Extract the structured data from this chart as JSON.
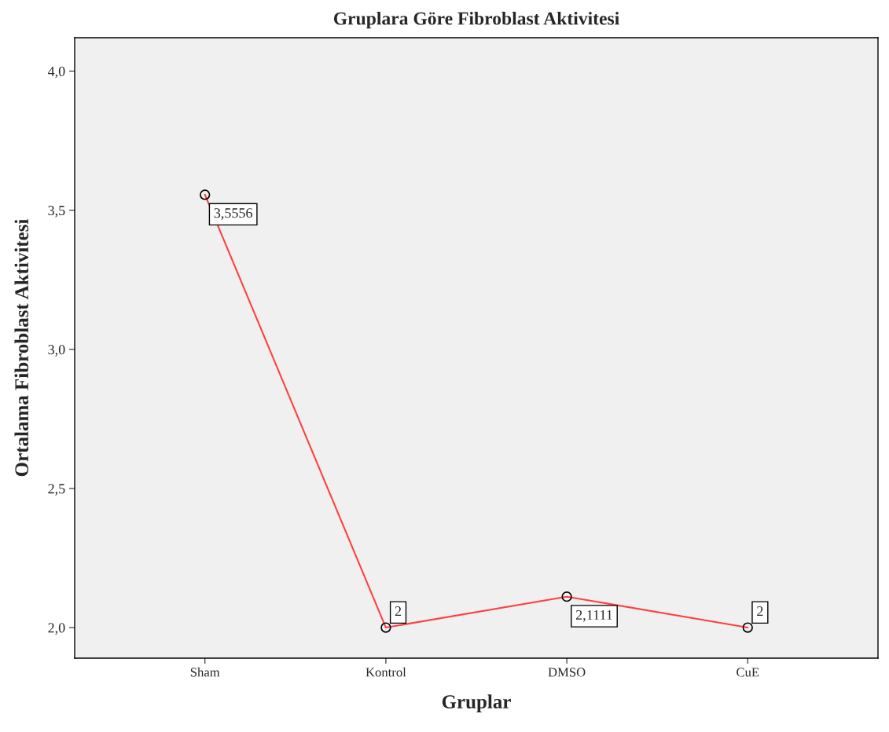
{
  "chart_data": {
    "type": "line",
    "title": "Gruplara Göre Fibroblast Aktivitesi",
    "xlabel": "Gruplar",
    "ylabel": "Ortalama Fibroblast Aktivitesi",
    "categories": [
      "Sham",
      "Kontrol",
      "DMSO",
      "CuE"
    ],
    "series": [
      {
        "color": "#ff4040",
        "values": [
          3.5556,
          2,
          2.1111,
          2
        ],
        "value_labels": [
          "3,5556",
          "2",
          "2,1111",
          "2"
        ]
      }
    ],
    "ylim": [
      1.89,
      4.12
    ],
    "yticks": [
      {
        "value": 2.0,
        "label": "2,0"
      },
      {
        "value": 2.5,
        "label": "2,5"
      },
      {
        "value": 3.0,
        "label": "3,0"
      },
      {
        "value": 3.5,
        "label": "3,5"
      },
      {
        "value": 4.0,
        "label": "4,0"
      }
    ],
    "marker": "circle",
    "line_style": "solid",
    "grid": false,
    "legend": false
  }
}
